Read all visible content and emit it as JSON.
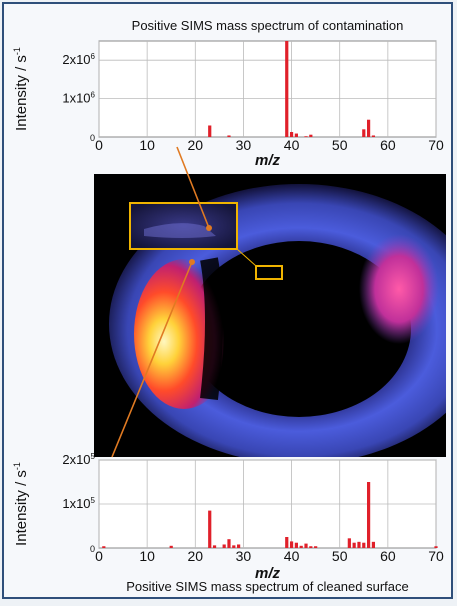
{
  "figure": {
    "border_color": "#2f4f7a",
    "bar_color": "#e0202a",
    "connector_color": "#e07a22",
    "highlight_color": "#f0b400"
  },
  "chart_data": [
    {
      "type": "bar",
      "title": "Positive SIMS mass spectrum of contamination",
      "xlabel": "m/z",
      "ylabel": "Intensity / s",
      "ylabel_sup": "-1",
      "xlim": [
        0,
        70
      ],
      "ylim": [
        0,
        2500000
      ],
      "xticks": [
        "0",
        "10",
        "20",
        "30",
        "40",
        "50",
        "60",
        "70"
      ],
      "yticks": [
        {
          "base": "0",
          "sup": "",
          "value": 0
        },
        {
          "base": "1x10",
          "sup": "6",
          "value": 1000000
        },
        {
          "base": "2x10",
          "sup": "6",
          "value": 2000000
        }
      ],
      "grid": true,
      "x": [
        23,
        27,
        39,
        40,
        41,
        43,
        44,
        55,
        56,
        57
      ],
      "values": [
        300000,
        40000,
        2500000,
        130000,
        90000,
        20000,
        60000,
        200000,
        450000,
        40000
      ]
    },
    {
      "type": "bar",
      "title": "Positive SIMS mass spectrum of cleaned surface",
      "xlabel": "m/z",
      "ylabel": "Intensity / s",
      "ylabel_sup": "-1",
      "xlim": [
        0,
        70
      ],
      "ylim": [
        0,
        200000
      ],
      "xticks": [
        "0",
        "10",
        "20",
        "30",
        "40",
        "50",
        "60",
        "70"
      ],
      "yticks": [
        {
          "base": "0",
          "sup": "",
          "value": 0
        },
        {
          "base": "1x10",
          "sup": "5",
          "value": 100000
        },
        {
          "base": "2x10",
          "sup": "5",
          "value": 200000
        }
      ],
      "grid": true,
      "x": [
        1,
        15,
        23,
        24,
        26,
        27,
        28,
        29,
        39,
        40,
        41,
        42,
        43,
        44,
        45,
        52,
        53,
        54,
        55,
        56,
        57,
        70
      ],
      "values": [
        4000,
        5000,
        85000,
        6000,
        8000,
        20000,
        6000,
        8000,
        25000,
        15000,
        12000,
        5000,
        10000,
        4000,
        4000,
        22000,
        12000,
        14000,
        12000,
        150000,
        14000,
        4000
      ]
    }
  ]
}
